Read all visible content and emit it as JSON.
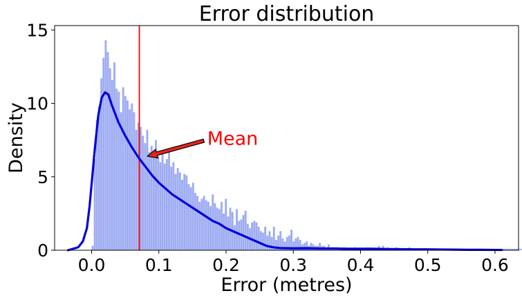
{
  "chart_data": {
    "type": "histogram",
    "title": "Error distribution",
    "xlabel": "Error (metres)",
    "ylabel": "Density",
    "xlim": [
      -0.055,
      0.635
    ],
    "ylim": [
      0,
      15.3
    ],
    "xticks": [
      0.0,
      0.1,
      0.2,
      0.3,
      0.4,
      0.5,
      0.6
    ],
    "xtick_labels": [
      "0.0",
      "0.1",
      "0.2",
      "0.3",
      "0.4",
      "0.5",
      "0.6"
    ],
    "yticks": [
      0,
      5,
      10,
      15
    ],
    "ytick_labels": [
      "0",
      "5",
      "10",
      "15"
    ],
    "grid": false,
    "histogram": {
      "bin_start": 0.0,
      "bin_width": 0.00325,
      "values": [
        0.3,
        6.2,
        8.9,
        9.8,
        11.7,
        13.1,
        14.3,
        13.5,
        12.4,
        11.6,
        12.8,
        11.0,
        10.8,
        9.4,
        11.1,
        10.5,
        10.2,
        9.6,
        10.0,
        9.4,
        8.2,
        8.7,
        8.4,
        7.8,
        7.3,
        8.2,
        6.7,
        7.1,
        6.5,
        7.5,
        6.4,
        6.0,
        6.7,
        5.9,
        6.2,
        6.8,
        5.7,
        6.0,
        5.2,
        5.6,
        5.3,
        4.8,
        5.2,
        5.1,
        4.5,
        4.3,
        4.6,
        3.9,
        3.7,
        3.3,
        3.5,
        3.7,
        3.4,
        3.3,
        3.0,
        3.8,
        3.2,
        2.9,
        2.8,
        3.3,
        2.5,
        3.5,
        2.3,
        2.9,
        2.6,
        1.7,
        2.8,
        2.0,
        2.1,
        2.4,
        2.7,
        1.8,
        1.5,
        1.9,
        2.0,
        1.9,
        1.6,
        1.3,
        1.2,
        1.6,
        1.0,
        1.3,
        0.9,
        1.6,
        0.7,
        1.0,
        1.3,
        0.8,
        0.6,
        0.9,
        1.0,
        1.4,
        0.6,
        0.8,
        0.9,
        0.7,
        0.4,
        0.5,
        0.6,
        0.3,
        0.5,
        0.4,
        0.3,
        0.3,
        0.5,
        0.3,
        0.3,
        0.2,
        0.4,
        0.2,
        0.2,
        0.2,
        0.2,
        0.1,
        0.1,
        0.2,
        0.1,
        0.1,
        0.1,
        0.1,
        0.2,
        0.1,
        0.1,
        0.1,
        0.1,
        0.1,
        0.2,
        0.1,
        0.1,
        0.1,
        0.1,
        0.3,
        0.1,
        0.3,
        0.1,
        0.2,
        0.1,
        0.1,
        0.1,
        0.2,
        0.1,
        0.1,
        0.1,
        0.1,
        0.1,
        0.2,
        0.1,
        0.1,
        0.1,
        0.1,
        0.1,
        0.1,
        0.1,
        0.1,
        0.1,
        0.1,
        0.1,
        0.1,
        0.1,
        0.1,
        0.1,
        0.1,
        0.1,
        0.1,
        0.1,
        0.1,
        0.1,
        0.1,
        0.1,
        0.1,
        0.1,
        0.1,
        0.1,
        0.1,
        0.1,
        0.1,
        0.1,
        0.1,
        0.1,
        0.1,
        0.1,
        0.1,
        0.1,
        0.1,
        0.1,
        0.1,
        0.1,
        0.1,
        0.1,
        0.1,
        0.1,
        0.1,
        0.1,
        0.1,
        0.1,
        0.1,
        0.1,
        0.1,
        0.1,
        0.1,
        0.1,
        0.1
      ],
      "color": "#8c9cf0"
    },
    "kde": {
      "x": [
        -0.035,
        -0.02,
        -0.013,
        -0.007,
        -0.003,
        0.0,
        0.005,
        0.01,
        0.015,
        0.02,
        0.025,
        0.03,
        0.04,
        0.05,
        0.06,
        0.07,
        0.08,
        0.09,
        0.1,
        0.11,
        0.12,
        0.13,
        0.14,
        0.15,
        0.16,
        0.17,
        0.18,
        0.19,
        0.2,
        0.21,
        0.22,
        0.23,
        0.24,
        0.25,
        0.26,
        0.27,
        0.28,
        0.3,
        0.32,
        0.34,
        0.36,
        0.38,
        0.4,
        0.42,
        0.44,
        0.46,
        0.48,
        0.5,
        0.52,
        0.54,
        0.56,
        0.58,
        0.6,
        0.61
      ],
      "y": [
        0.0,
        0.2,
        0.6,
        1.5,
        3.0,
        4.5,
        7.0,
        9.2,
        10.4,
        10.75,
        10.6,
        9.9,
        8.7,
        7.8,
        7.0,
        6.3,
        5.7,
        5.1,
        4.6,
        4.2,
        3.8,
        3.5,
        3.2,
        2.9,
        2.6,
        2.3,
        2.0,
        1.8,
        1.5,
        1.3,
        1.1,
        0.9,
        0.7,
        0.5,
        0.3,
        0.2,
        0.15,
        0.13,
        0.14,
        0.12,
        0.12,
        0.1,
        0.1,
        0.1,
        0.08,
        0.07,
        0.06,
        0.06,
        0.05,
        0.04,
        0.03,
        0.03,
        0.02,
        0.02
      ],
      "color": "#0000dd"
    },
    "mean_line": {
      "x": 0.071,
      "color": "#ff0000"
    },
    "annotation": {
      "text": "Mean",
      "text_x": 0.172,
      "text_y": 7.6,
      "arrow_tip_x": 0.083,
      "arrow_tip_y": 6.4,
      "color": "#ff0000",
      "arrow_face_color": "#e8241c"
    }
  }
}
